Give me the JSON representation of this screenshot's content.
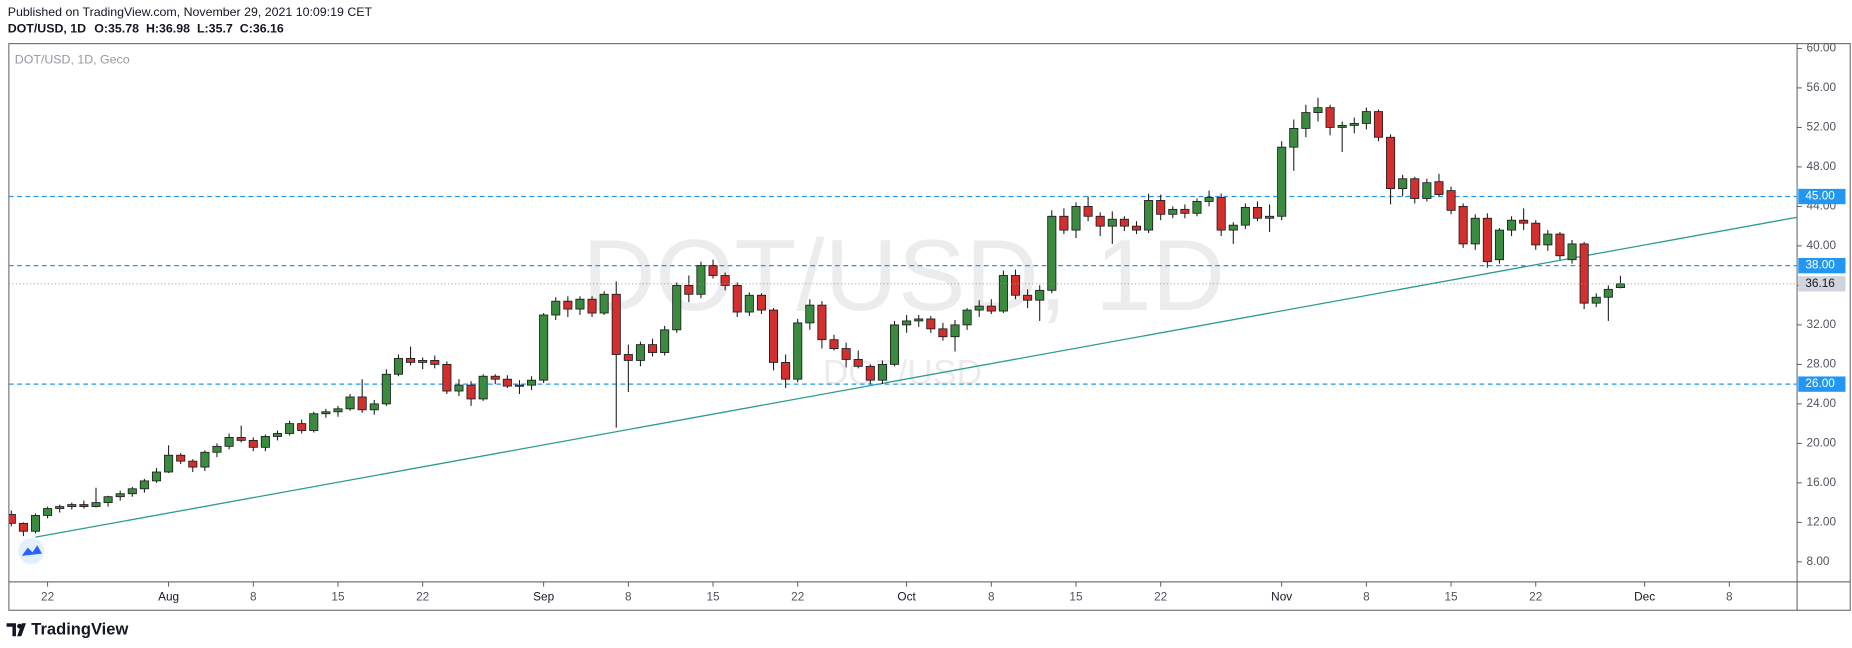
{
  "published": "Published on TradingView.com, November 29, 2021 10:09:19 CET",
  "brand": "TradingView",
  "chart_data": {
    "type": "candlestick",
    "symbol": "DOT/USD, 1D",
    "chart_label": "DOT/USD, 1D, Geco",
    "watermark": "DOT/USD",
    "ohlc_keys": [
      "O:",
      "H:",
      "L:",
      "C:"
    ],
    "x": [
      "Jul 19",
      "Jul 20",
      "Jul 21",
      "Jul 22",
      "Jul 23",
      "Jul 24",
      "Jul 25",
      "Jul 26",
      "Jul 27",
      "Jul 28",
      "Jul 29",
      "Jul 30",
      "Jul 31",
      "Aug 1",
      "Aug 2",
      "Aug 3",
      "Aug 4",
      "Aug 5",
      "Aug 6",
      "Aug 7",
      "Aug 8",
      "Aug 9",
      "Aug 10",
      "Aug 11",
      "Aug 12",
      "Aug 13",
      "Aug 14",
      "Aug 15",
      "Aug 16",
      "Aug 17",
      "Aug 18",
      "Aug 19",
      "Aug 20",
      "Aug 21",
      "Aug 22",
      "Aug 23",
      "Aug 24",
      "Aug 25",
      "Aug 26",
      "Aug 27",
      "Aug 28",
      "Aug 29",
      "Aug 30",
      "Aug 31",
      "Sep 1",
      "Sep 2",
      "Sep 3",
      "Sep 4",
      "Sep 5",
      "Sep 6",
      "Sep 7",
      "Sep 8",
      "Sep 9",
      "Sep 10",
      "Sep 11",
      "Sep 12",
      "Sep 13",
      "Sep 14",
      "Sep 15",
      "Sep 16",
      "Sep 17",
      "Sep 18",
      "Sep 19",
      "Sep 20",
      "Sep 21",
      "Sep 22",
      "Sep 23",
      "Sep 24",
      "Sep 25",
      "Sep 26",
      "Sep 27",
      "Sep 28",
      "Sep 29",
      "Sep 30",
      "Oct 1",
      "Oct 2",
      "Oct 3",
      "Oct 4",
      "Oct 5",
      "Oct 6",
      "Oct 7",
      "Oct 8",
      "Oct 9",
      "Oct 10",
      "Oct 11",
      "Oct 12",
      "Oct 13",
      "Oct 14",
      "Oct 15",
      "Oct 16",
      "Oct 17",
      "Oct 18",
      "Oct 19",
      "Oct 20",
      "Oct 21",
      "Oct 22",
      "Oct 23",
      "Oct 24",
      "Oct 25",
      "Oct 26",
      "Oct 27",
      "Oct 28",
      "Oct 29",
      "Oct 30",
      "Oct 31",
      "Nov 1",
      "Nov 2",
      "Nov 3",
      "Nov 4",
      "Nov 5",
      "Nov 6",
      "Nov 7",
      "Nov 8",
      "Nov 9",
      "Nov 10",
      "Nov 11",
      "Nov 12",
      "Nov 13",
      "Nov 14",
      "Nov 15",
      "Nov 16",
      "Nov 17",
      "Nov 18",
      "Nov 19",
      "Nov 20",
      "Nov 21",
      "Nov 22",
      "Nov 23",
      "Nov 24",
      "Nov 25",
      "Nov 26",
      "Nov 27",
      "Nov 28",
      "Nov 29"
    ],
    "open": [
      12.8,
      11.9,
      11.1,
      12.7,
      13.4,
      13.6,
      13.8,
      13.6,
      14.0,
      14.6,
      14.9,
      15.4,
      16.2,
      17.1,
      18.8,
      18.2,
      17.6,
      19.1,
      19.7,
      20.6,
      20.3,
      19.6,
      20.7,
      21.0,
      22.0,
      21.3,
      23.0,
      23.2,
      23.5,
      24.7,
      23.4,
      24.0,
      27.0,
      28.6,
      28.2,
      28.4,
      28.0,
      25.3,
      25.9,
      24.5,
      26.8,
      26.5,
      25.8,
      25.9,
      26.4,
      33.0,
      34.4,
      33.6,
      34.6,
      33.2,
      35.1,
      29.0,
      28.4,
      30.0,
      29.2,
      31.5,
      36.0,
      35.1,
      38.0,
      37.0,
      36.0,
      33.3,
      35.0,
      33.5,
      28.2,
      26.5,
      32.2,
      34.0,
      30.5,
      29.6,
      28.5,
      27.8,
      26.4,
      28.0,
      32.0,
      32.4,
      32.6,
      31.6,
      30.8,
      32.0,
      33.5,
      33.9,
      33.4,
      37.0,
      35.0,
      34.5,
      35.5,
      43.0,
      41.6,
      44.0,
      43.0,
      42.0,
      42.7,
      42.0,
      41.6,
      44.6,
      43.2,
      43.7,
      43.3,
      44.5,
      44.9,
      41.6,
      42.1,
      43.9,
      42.8,
      43.0,
      50.0,
      51.9,
      53.5,
      54.0,
      52.0,
      52.2,
      52.4,
      53.6,
      51.0,
      45.8,
      46.8,
      44.8,
      46.5,
      45.6,
      44.0,
      40.2,
      42.8,
      38.6,
      41.6,
      42.6,
      42.3,
      40.1,
      41.2,
      38.6,
      40.2,
      34.2,
      34.8,
      35.78
    ],
    "high": [
      13.2,
      12.0,
      12.9,
      13.6,
      13.8,
      14.0,
      14.2,
      15.5,
      14.7,
      15.2,
      15.6,
      16.4,
      17.5,
      19.8,
      19.0,
      18.4,
      19.3,
      20.0,
      21.0,
      21.8,
      20.6,
      20.9,
      21.3,
      22.3,
      22.4,
      23.2,
      23.5,
      23.8,
      25.0,
      26.5,
      24.4,
      27.5,
      29.0,
      29.8,
      28.7,
      28.9,
      28.3,
      26.5,
      26.3,
      27.0,
      27.0,
      26.9,
      26.4,
      26.8,
      33.2,
      34.8,
      34.9,
      34.9,
      34.9,
      35.4,
      36.4,
      30.0,
      30.3,
      30.6,
      31.9,
      36.3,
      37.0,
      38.4,
      38.6,
      37.3,
      36.3,
      35.3,
      35.2,
      33.7,
      29.0,
      32.6,
      34.6,
      34.4,
      31.0,
      30.2,
      29.4,
      28.0,
      28.4,
      32.4,
      33.0,
      33.0,
      32.9,
      32.2,
      32.5,
      33.7,
      34.5,
      34.6,
      37.5,
      37.6,
      35.6,
      36.0,
      43.6,
      43.8,
      44.4,
      45.0,
      43.4,
      43.5,
      43.0,
      42.5,
      45.3,
      45.2,
      44.0,
      44.2,
      44.8,
      45.6,
      45.3,
      42.4,
      44.3,
      44.5,
      44.2,
      50.6,
      52.8,
      54.3,
      55.0,
      54.3,
      52.6,
      53.0,
      54.0,
      53.8,
      51.3,
      47.2,
      47.0,
      46.8,
      47.3,
      46.0,
      44.3,
      43.2,
      43.3,
      41.8,
      43.0,
      43.8,
      42.6,
      41.6,
      41.4,
      40.6,
      40.4,
      35.2,
      36.0,
      36.98
    ],
    "low": [
      11.6,
      10.6,
      10.9,
      12.4,
      13.0,
      13.3,
      13.4,
      13.5,
      13.6,
      14.2,
      14.6,
      15.0,
      16.0,
      17.0,
      17.9,
      17.1,
      17.2,
      18.6,
      19.4,
      20.1,
      19.2,
      19.2,
      20.3,
      20.8,
      21.0,
      21.1,
      22.6,
      22.7,
      23.3,
      23.1,
      22.9,
      23.8,
      26.8,
      27.9,
      27.5,
      27.6,
      25.0,
      24.8,
      23.8,
      24.3,
      26.0,
      25.6,
      25.0,
      25.4,
      26.1,
      32.5,
      32.8,
      33.0,
      32.8,
      33.0,
      21.6,
      25.2,
      27.8,
      28.8,
      28.9,
      31.2,
      34.3,
      34.7,
      36.7,
      35.5,
      32.8,
      32.9,
      33.1,
      27.4,
      25.6,
      26.2,
      31.5,
      29.6,
      29.4,
      27.7,
      27.6,
      26.0,
      26.0,
      27.8,
      31.2,
      31.8,
      31.2,
      30.4,
      29.3,
      31.5,
      32.8,
      33.1,
      33.2,
      34.6,
      33.7,
      32.4,
      35.2,
      41.2,
      40.8,
      42.5,
      41.0,
      40.2,
      41.5,
      41.2,
      41.3,
      42.6,
      42.8,
      42.8,
      43.0,
      44.0,
      41.0,
      40.2,
      41.7,
      42.5,
      41.4,
      42.6,
      47.6,
      51.0,
      52.6,
      51.2,
      49.5,
      51.4,
      51.8,
      50.6,
      44.2,
      45.0,
      44.3,
      44.5,
      45.0,
      43.2,
      39.8,
      39.6,
      37.8,
      38.2,
      41.0,
      41.6,
      39.6,
      39.5,
      38.6,
      38.2,
      33.6,
      33.8,
      32.4,
      35.7
    ],
    "close": [
      11.9,
      11.1,
      12.7,
      13.4,
      13.6,
      13.8,
      13.6,
      14.0,
      14.6,
      14.9,
      15.4,
      16.2,
      17.1,
      18.8,
      18.2,
      17.6,
      19.1,
      19.7,
      20.6,
      20.3,
      19.6,
      20.7,
      21.0,
      22.0,
      21.3,
      23.0,
      23.2,
      23.5,
      24.7,
      23.4,
      24.0,
      27.0,
      28.6,
      28.2,
      28.4,
      28.0,
      25.3,
      25.9,
      24.5,
      26.8,
      26.5,
      25.8,
      25.9,
      26.4,
      33.0,
      34.4,
      33.6,
      34.6,
      33.2,
      35.1,
      29.0,
      28.4,
      30.0,
      29.2,
      31.5,
      36.0,
      35.1,
      38.0,
      37.0,
      36.0,
      33.3,
      35.0,
      33.5,
      28.2,
      26.5,
      32.2,
      34.0,
      30.5,
      29.6,
      28.5,
      27.8,
      26.4,
      28.0,
      32.0,
      32.4,
      32.6,
      31.6,
      30.8,
      32.0,
      33.5,
      33.9,
      33.4,
      37.0,
      35.0,
      34.5,
      35.5,
      43.0,
      41.6,
      44.0,
      43.0,
      42.0,
      42.7,
      42.0,
      41.6,
      44.6,
      43.2,
      43.7,
      43.3,
      44.5,
      44.9,
      41.6,
      42.1,
      43.9,
      42.8,
      43.0,
      50.0,
      51.9,
      53.5,
      54.0,
      52.0,
      52.2,
      52.4,
      53.6,
      51.0,
      45.8,
      46.8,
      44.8,
      46.4,
      45.2,
      43.6,
      40.2,
      42.8,
      38.4,
      41.6,
      42.6,
      42.3,
      40.1,
      41.2,
      39.0,
      40.2,
      34.2,
      34.8,
      35.6,
      36.16
    ],
    "up_color": "#3a8a3f",
    "down_color": "#d32f2f",
    "xlim": [
      -0.2,
      147.6
    ],
    "xticks": [
      {
        "value": 3,
        "label": "22"
      },
      {
        "value": 13,
        "label": "Aug"
      },
      {
        "value": 20,
        "label": "8"
      },
      {
        "value": 27,
        "label": "15"
      },
      {
        "value": 34,
        "label": "22"
      },
      {
        "value": 44,
        "label": "Sep"
      },
      {
        "value": 51,
        "label": "8"
      },
      {
        "value": 58,
        "label": "15"
      },
      {
        "value": 65,
        "label": "22"
      },
      {
        "value": 74,
        "label": "Oct"
      },
      {
        "value": 81,
        "label": "8"
      },
      {
        "value": 88,
        "label": "15"
      },
      {
        "value": 95,
        "label": "22"
      },
      {
        "value": 105,
        "label": "Nov"
      },
      {
        "value": 112,
        "label": "8"
      },
      {
        "value": 119,
        "label": "15"
      },
      {
        "value": 126,
        "label": "22"
      },
      {
        "value": 135,
        "label": "Dec"
      },
      {
        "value": 142,
        "label": "8"
      }
    ],
    "ylim": [
      5.97,
      60.48
    ],
    "yticks": [
      {
        "value": 8,
        "label": "8.00"
      },
      {
        "value": 12,
        "label": "12.00"
      },
      {
        "value": 16,
        "label": "16.00"
      },
      {
        "value": 20,
        "label": "20.00"
      },
      {
        "value": 24,
        "label": "24.00"
      },
      {
        "value": 28,
        "label": "28.00"
      },
      {
        "value": 32,
        "label": "32.00"
      },
      {
        "value": 36,
        "label": "36.00"
      },
      {
        "value": 40,
        "label": "40.00"
      },
      {
        "value": 44,
        "label": "44.00"
      },
      {
        "value": 48,
        "label": "48.00"
      },
      {
        "value": 52,
        "label": "52.00"
      },
      {
        "value": 56,
        "label": "56.00"
      },
      {
        "value": 60,
        "label": "60.00"
      }
    ],
    "hlines": [
      {
        "value": 45,
        "label": "45.00"
      },
      {
        "value": 38,
        "label": "38.00"
      },
      {
        "value": 26,
        "label": "26.00"
      }
    ],
    "hline_color": "#2196f3",
    "trendline": {
      "x": [
        2,
        147.6
      ],
      "y": [
        10.5,
        42.9
      ],
      "color": "#2a9d8f"
    },
    "last_price_line": true
  }
}
